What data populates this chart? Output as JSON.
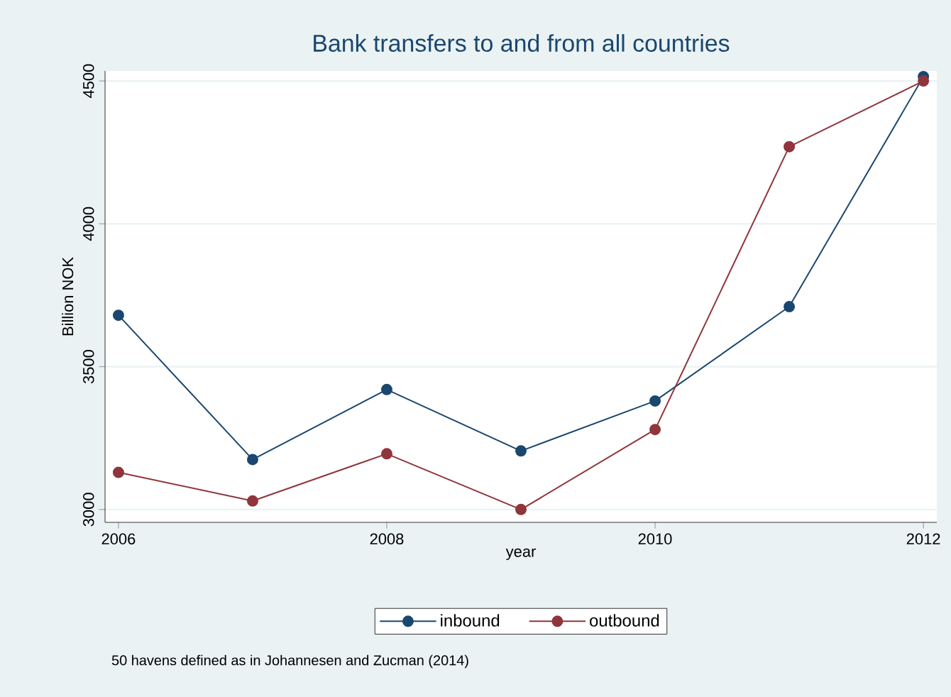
{
  "chart_data": {
    "type": "line",
    "title": "Bank transfers to and from all countries",
    "xlabel": "year",
    "ylabel": "Billion NOK",
    "x": [
      2006,
      2007,
      2008,
      2009,
      2010,
      2011,
      2012
    ],
    "series": [
      {
        "name": "inbound",
        "color": "#1a476f",
        "values": [
          3680,
          3175,
          3420,
          3205,
          3380,
          3710,
          4515
        ]
      },
      {
        "name": "outbound",
        "color": "#90353b",
        "values": [
          3130,
          3030,
          3195,
          3000,
          3280,
          4270,
          4500
        ]
      }
    ],
    "xlim": [
      2005.9,
      2012.1
    ],
    "ylim": [
      2955,
      4535
    ],
    "xticks": [
      2006,
      2008,
      2010,
      2012
    ],
    "yticks": [
      3000,
      3500,
      4000,
      4500
    ],
    "grid": "y",
    "legend": "bottom",
    "marker": "circle",
    "line_style": "solid",
    "annotations": [
      "50 havens defined as in Johannesen and Zucman (2014)"
    ]
  }
}
